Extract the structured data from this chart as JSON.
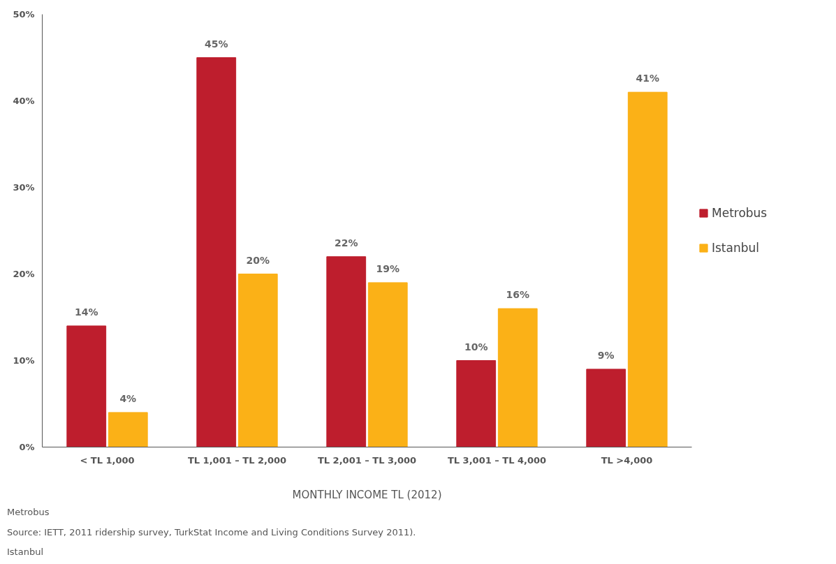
{
  "chart_data": {
    "type": "bar",
    "categories": [
      "< TL 1,000",
      "TL 1,001 – TL 2,000",
      "TL 2,001 – TL 3,000",
      "TL 3,001 – TL 4,000",
      "TL >4,000"
    ],
    "series": [
      {
        "name": "Metrobus",
        "color": "#be1e2d",
        "values": [
          14,
          45,
          22,
          10,
          9
        ],
        "value_labels": [
          "14%",
          "45%",
          "22%",
          "10%",
          "9%"
        ]
      },
      {
        "name": "Istanbul",
        "color": "#fbb117",
        "values": [
          4,
          20,
          19,
          16,
          41
        ],
        "value_labels": [
          "4%",
          "20%",
          "19%",
          "16%",
          "41%"
        ]
      }
    ],
    "xlabel": "MONTHLY INCOME TL (2012)",
    "ylim": [
      0,
      50
    ],
    "yticks": [
      {
        "value": 0,
        "label": "0%"
      },
      {
        "value": 10,
        "label": "10%"
      },
      {
        "value": 20,
        "label": "20%"
      },
      {
        "value": 30,
        "label": "30%"
      },
      {
        "value": 40,
        "label": "40%"
      },
      {
        "value": 50,
        "label": "50%"
      }
    ],
    "grid": false,
    "legend": "right",
    "annotations": [
      "Metrobus",
      "Source: IETT, 2011 ridership survey, TurkStat Income and Living Conditions Survey 2011).",
      "Istanbul"
    ]
  }
}
